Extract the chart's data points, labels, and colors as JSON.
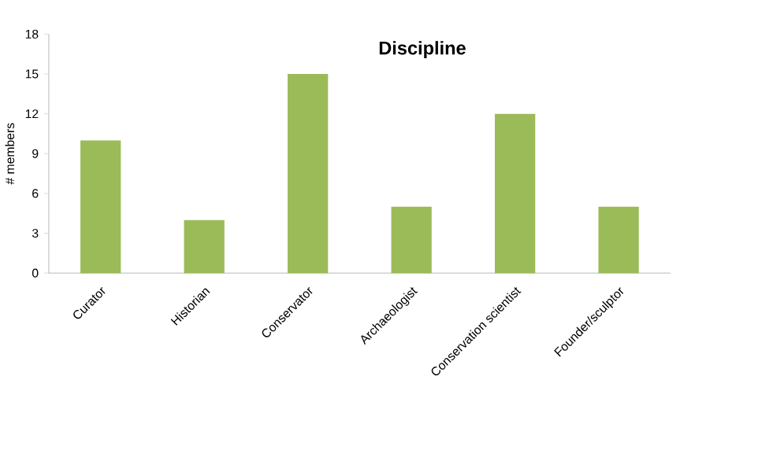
{
  "chart_data": {
    "type": "bar",
    "title": "Discipline",
    "ylabel": "# members",
    "categories": [
      "Curator",
      "Historian",
      "Conservator",
      "Archaeologist",
      "Conservation scientist",
      "Founder/sculptor"
    ],
    "values": [
      10,
      4,
      15,
      5,
      12,
      5
    ],
    "color": "#9bbb59",
    "ylim": [
      0,
      18
    ],
    "yticks": [
      0,
      3,
      6,
      9,
      12,
      15,
      18
    ]
  }
}
